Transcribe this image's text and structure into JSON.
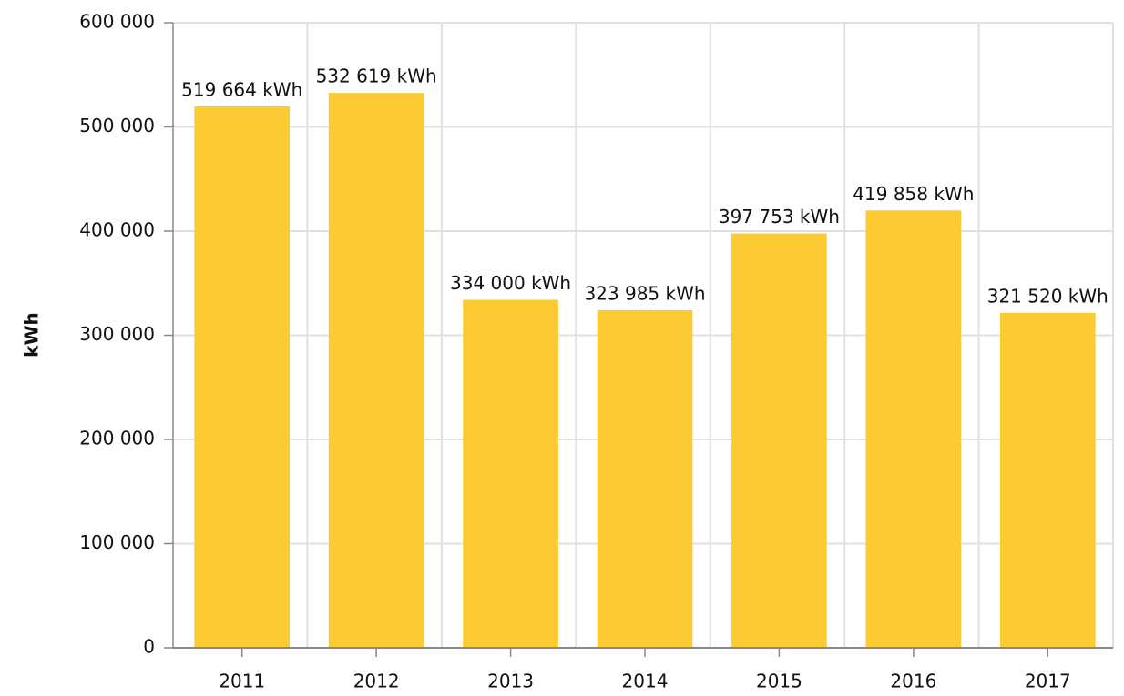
{
  "chart_data": {
    "type": "bar",
    "y_label": "kWh",
    "categories": [
      "2011",
      "2012",
      "2013",
      "2014",
      "2015",
      "2016",
      "2017"
    ],
    "values": [
      519664,
      532619,
      334000,
      323985,
      397753,
      419858,
      321520
    ],
    "value_labels": [
      "519 664 kWh",
      "532 619 kWh",
      "334 000 kWh",
      "323 985 kWh",
      "397 753 kWh",
      "419 858 kWh",
      "321 520 kWh"
    ],
    "color": "#fcca33",
    "ylim": [
      0,
      600000
    ],
    "yticks": [
      0,
      {
        "value": 100000,
        "label": "100 000"
      },
      {
        "value": 200000,
        "label": "200 000"
      },
      {
        "value": 300000,
        "label": "300 000"
      },
      {
        "value": 400000,
        "label": "400 000"
      },
      {
        "value": 500000,
        "label": "500 000"
      },
      {
        "value": 600000,
        "label": "600 000"
      }
    ],
    "grid": true
  }
}
